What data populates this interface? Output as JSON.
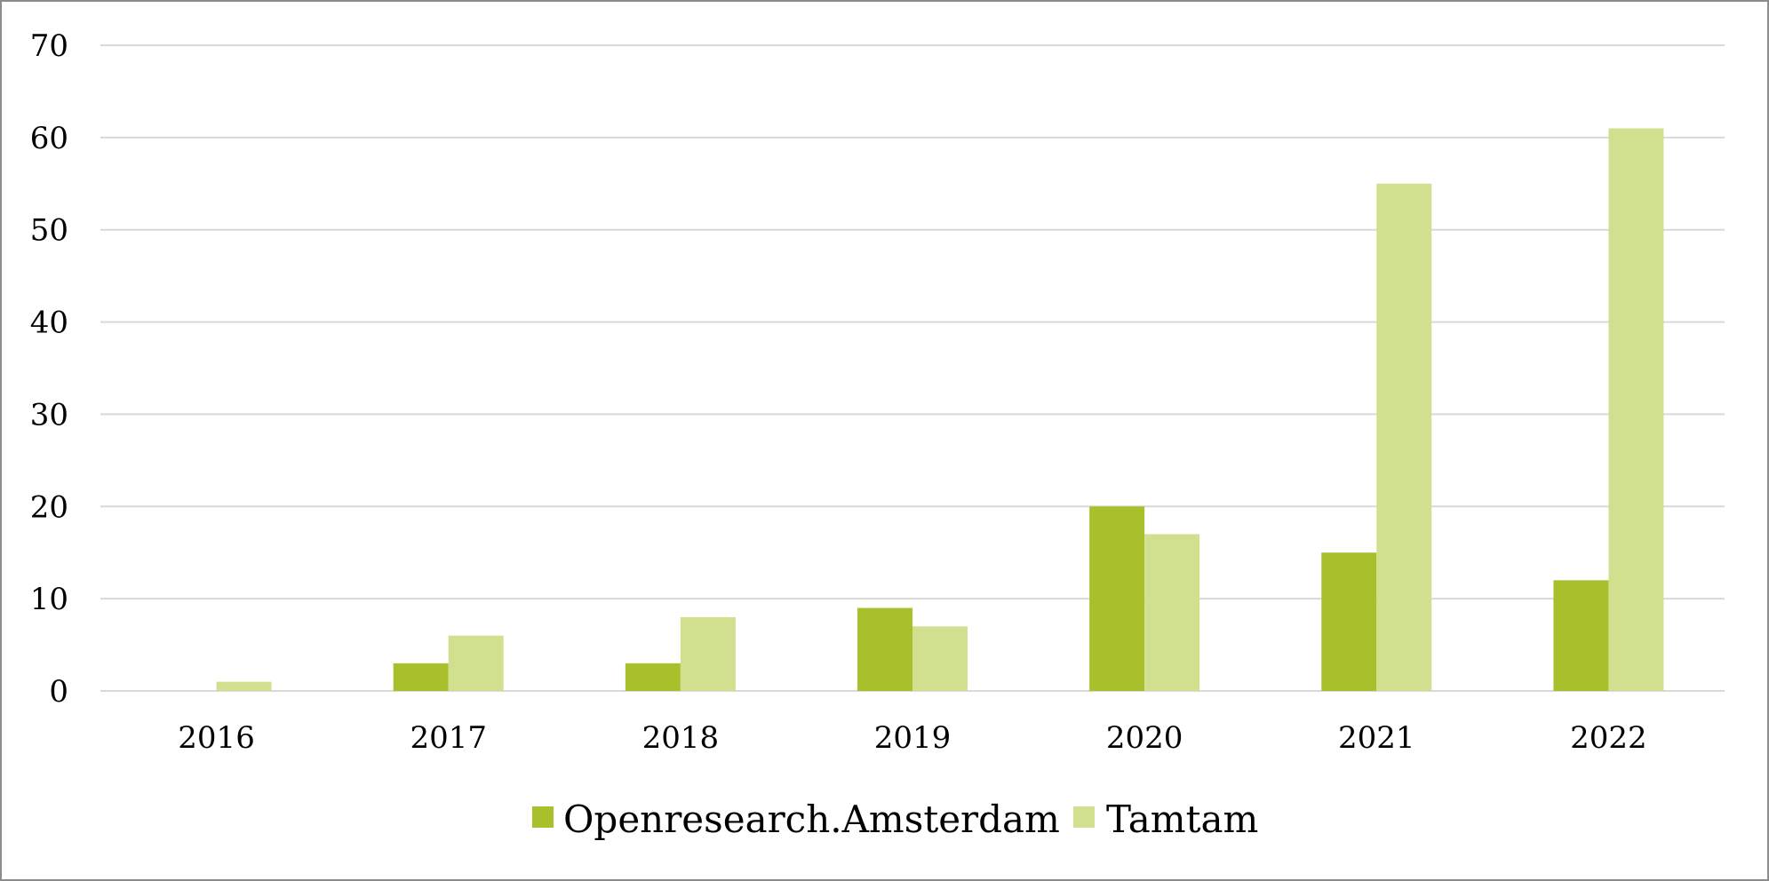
{
  "chart_data": {
    "type": "bar",
    "categories": [
      "2016",
      "2017",
      "2018",
      "2019",
      "2020",
      "2021",
      "2022"
    ],
    "series": [
      {
        "name": "Openresearch.Amsterdam",
        "color": "#a9bf2b",
        "values": [
          0,
          3,
          3,
          9,
          20,
          15,
          12
        ]
      },
      {
        "name": "Tamtam",
        "color": "#d1e08e",
        "values": [
          1,
          6,
          8,
          7,
          17,
          55,
          61
        ]
      }
    ],
    "y_ticks": [
      "0",
      "10",
      "20",
      "30",
      "40",
      "50",
      "60",
      "70"
    ],
    "ylim": [
      0,
      70
    ],
    "grid": true,
    "legend_position": "bottom"
  }
}
